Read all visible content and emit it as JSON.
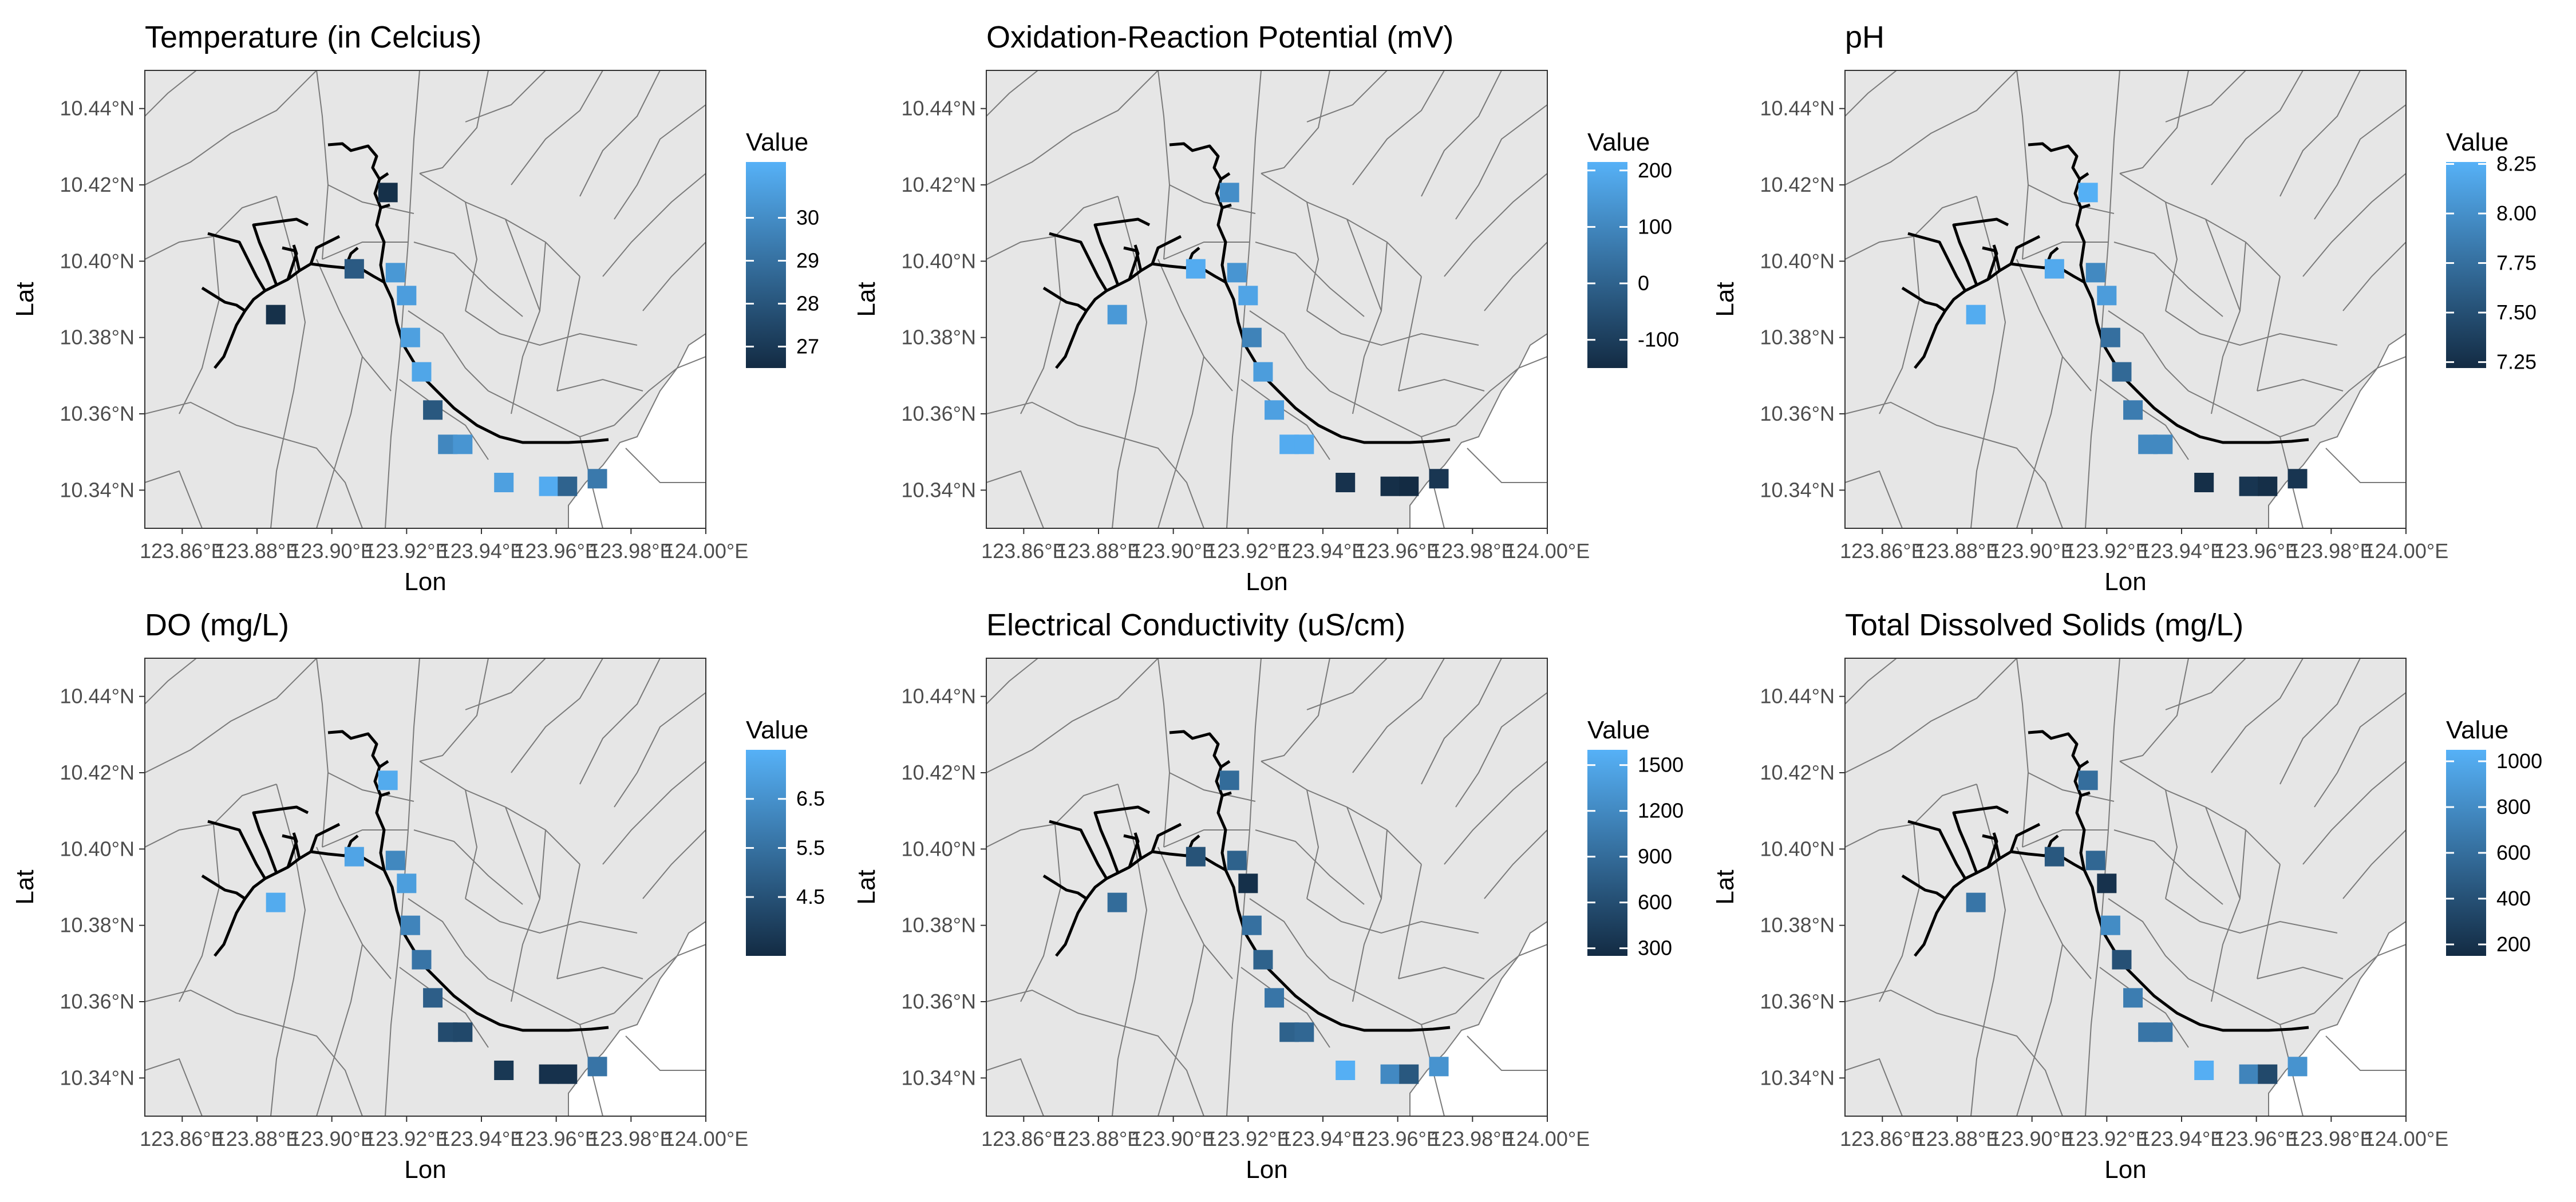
{
  "colors": {
    "panel_bg": "#e6e6e6",
    "border_lines": "#7a7a7a",
    "river": "#000000",
    "scale_low": "#132b43",
    "scale_high": "#56b1f7",
    "sea": "#ffffff"
  },
  "axes": {
    "xlabel": "Lon",
    "ylabel": "Lat",
    "x_ticks": [
      "123.86°E",
      "123.88°E",
      "123.90°E",
      "123.92°E",
      "123.94°E",
      "123.96°E",
      "123.98°E",
      "124.00°E"
    ],
    "y_ticks": [
      "10.34°N",
      "10.36°N",
      "10.38°N",
      "10.40°N",
      "10.42°N",
      "10.44°N"
    ],
    "xlim": [
      123.85,
      124.0
    ],
    "ylim": [
      10.33,
      10.45
    ]
  },
  "legend_title": "Value",
  "stations": [
    [
      123.915,
      10.418
    ],
    [
      123.906,
      10.398
    ],
    [
      123.917,
      10.397
    ],
    [
      123.92,
      10.391
    ],
    [
      123.885,
      10.386
    ],
    [
      123.921,
      10.38
    ],
    [
      123.924,
      10.371
    ],
    [
      123.927,
      10.361
    ],
    [
      123.931,
      10.352
    ],
    [
      123.935,
      10.352
    ],
    [
      123.946,
      10.342
    ],
    [
      123.958,
      10.341
    ],
    [
      123.963,
      10.341
    ],
    [
      123.971,
      10.343
    ]
  ],
  "chart_data": [
    {
      "type": "map",
      "title": "Temperature (in Celcius)",
      "legend_ticks": [
        "30",
        "29",
        "28",
        "27"
      ],
      "range": [
        26.5,
        31.3
      ],
      "values": [
        26.7,
        28.2,
        30.4,
        30.6,
        26.7,
        30.7,
        30.9,
        28.1,
        29.8,
        30.3,
        30.7,
        31.1,
        28.5,
        29.3
      ]
    },
    {
      "type": "map",
      "title": "Oxidation-Reaction Potential (mV)",
      "legend_ticks": [
        "200",
        "100",
        "0",
        "-100"
      ],
      "range": [
        -150,
        215
      ],
      "values": [
        120,
        200,
        140,
        180,
        150,
        90,
        160,
        170,
        200,
        200,
        -130,
        -140,
        -150,
        -120
      ]
    },
    {
      "type": "map",
      "title": "pH",
      "legend_ticks": [
        "8.25",
        "8.00",
        "7.75",
        "7.50",
        "7.25"
      ],
      "range": [
        7.22,
        8.26
      ],
      "values": [
        8.25,
        8.2,
        7.95,
        8.1,
        8.22,
        7.75,
        7.7,
        7.85,
        7.95,
        7.95,
        7.25,
        7.3,
        7.25,
        7.3
      ]
    },
    {
      "type": "map",
      "title": "DO (mg/L)",
      "legend_ticks": [
        "6.5",
        "5.5",
        "4.5"
      ],
      "range": [
        3.3,
        7.5
      ],
      "values": [
        7.3,
        7.1,
        6.2,
        6.9,
        7.3,
        6.1,
        5.6,
        4.9,
        4.3,
        4.2,
        3.7,
        3.5,
        3.5,
        5.6
      ]
    },
    {
      "type": "map",
      "title": "Electrical Conductivity (uS/cm)",
      "legend_ticks": [
        "1500",
        "1200",
        "900",
        "600",
        "300"
      ],
      "range": [
        250,
        1600
      ],
      "values": [
        900,
        650,
        800,
        300,
        900,
        950,
        800,
        1000,
        800,
        850,
        1580,
        1200,
        700,
        1300
      ]
    },
    {
      "type": "map",
      "title": "Total Dissolved Solids (mg/L)",
      "legend_ticks": [
        "1000",
        "800",
        "600",
        "400",
        "200"
      ],
      "range": [
        150,
        1050
      ],
      "values": [
        600,
        450,
        550,
        200,
        650,
        800,
        400,
        700,
        650,
        650,
        1030,
        750,
        350,
        850
      ]
    }
  ]
}
